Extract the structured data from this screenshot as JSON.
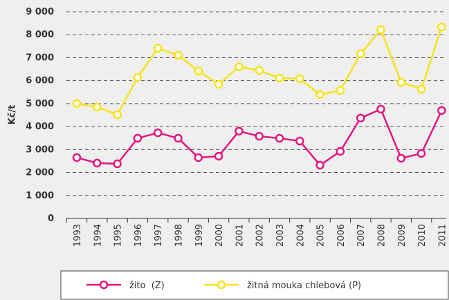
{
  "chart_data": {
    "type": "line",
    "ylabel": "Kč/t",
    "categories": [
      "1993",
      "1994",
      "1995",
      "1996",
      "1997",
      "1998",
      "1999",
      "2000",
      "2001",
      "2002",
      "2003",
      "2004",
      "2005",
      "2006",
      "2007",
      "2008",
      "2009",
      "2010",
      "2011"
    ],
    "series": [
      {
        "name": "žito  (Z)",
        "color": "#e2157f",
        "values": [
          2650,
          2410,
          2380,
          3490,
          3730,
          3490,
          2650,
          2710,
          3800,
          3580,
          3490,
          3370,
          2320,
          2920,
          4370,
          4760,
          2620,
          2830,
          4700
        ]
      },
      {
        "name": "žitná mouka chlebová (P)",
        "color": "#f5e31b",
        "values": [
          5000,
          4850,
          4520,
          6140,
          7410,
          7110,
          6420,
          5840,
          6600,
          6450,
          6110,
          6080,
          5390,
          5570,
          7170,
          8220,
          5930,
          5630,
          8340
        ]
      }
    ],
    "ylim": [
      0,
      9000
    ],
    "yticks": [
      0,
      {
        "value": 1000,
        "label": "1 000"
      },
      {
        "value": 2000,
        "label": "2 000"
      },
      {
        "value": 3000,
        "label": "3 000"
      },
      {
        "value": 4000,
        "label": "4 000"
      },
      {
        "value": 5000,
        "label": "5 000"
      },
      {
        "value": 6000,
        "label": "6 000"
      },
      {
        "value": 7000,
        "label": "7 000"
      },
      {
        "value": 8000,
        "label": "8 000"
      },
      {
        "value": 9000,
        "label": "9 000"
      }
    ],
    "grid": true
  }
}
